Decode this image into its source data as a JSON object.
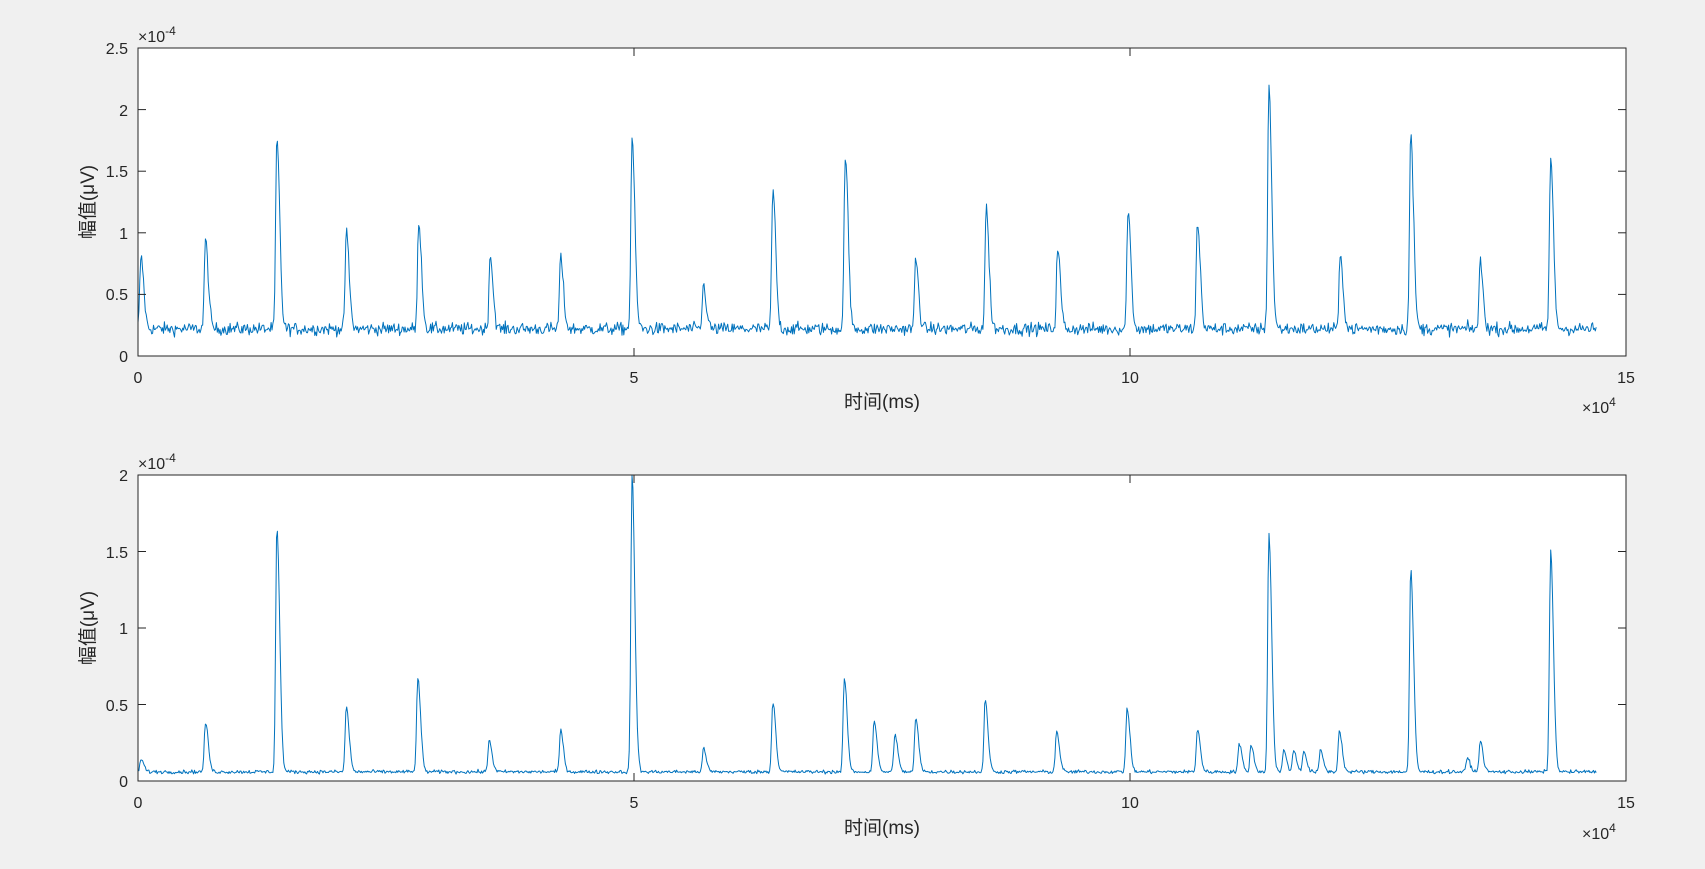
{
  "figure": {
    "background": "#f0f0f0",
    "line_color": "#0072bd",
    "axes_color": "#262626"
  },
  "chart_data": [
    {
      "type": "line",
      "xlabel": "时间(ms)",
      "ylabel": "幅值(μV)",
      "xlim": [
        0,
        15
      ],
      "ylim": [
        0,
        2.5
      ],
      "x_multiplier": "×10",
      "x_multiplier_exp": "4",
      "y_multiplier": "×10",
      "y_multiplier_exp": "-4",
      "x_ticks": [
        0,
        5,
        10,
        15
      ],
      "x_tick_labels": [
        "0",
        "5",
        "10",
        "15"
      ],
      "y_ticks": [
        0,
        0.5,
        1,
        1.5,
        2,
        2.5
      ],
      "y_tick_labels": [
        "0",
        "0.5",
        "1",
        "1.5",
        "2",
        "2.5"
      ],
      "grid": false,
      "series": [
        {
          "color": "#0072bd",
          "x_range": [
            0,
            14.7
          ],
          "baseline": 0.22,
          "noise": 0.05,
          "peaks": [
            [
              0.03,
              0.8
            ],
            [
              0.68,
              0.93
            ],
            [
              1.4,
              1.76
            ],
            [
              2.1,
              1.01
            ],
            [
              2.83,
              1.1
            ],
            [
              3.55,
              0.82
            ],
            [
              4.26,
              0.8
            ],
            [
              4.98,
              1.78
            ],
            [
              5.7,
              0.57
            ],
            [
              6.4,
              1.35
            ],
            [
              7.13,
              1.65
            ],
            [
              7.84,
              0.78
            ],
            [
              8.55,
              1.21
            ],
            [
              9.27,
              0.88
            ],
            [
              9.98,
              1.2
            ],
            [
              10.68,
              1.08
            ],
            [
              11.4,
              2.19
            ],
            [
              12.12,
              0.81
            ],
            [
              12.83,
              1.81
            ],
            [
              13.53,
              0.76
            ],
            [
              14.24,
              1.61
            ]
          ]
        }
      ]
    },
    {
      "type": "line",
      "xlabel": "时间(ms)",
      "ylabel": "幅值(μV)",
      "xlim": [
        0,
        15
      ],
      "ylim": [
        0,
        2
      ],
      "x_multiplier": "×10",
      "x_multiplier_exp": "4",
      "y_multiplier": "×10",
      "y_multiplier_exp": "-4",
      "x_ticks": [
        0,
        5,
        10,
        15
      ],
      "x_tick_labels": [
        "0",
        "5",
        "10",
        "15"
      ],
      "y_ticks": [
        0,
        0.5,
        1,
        1.5,
        2
      ],
      "y_tick_labels": [
        "0",
        "0.5",
        "1",
        "1.5",
        "2"
      ],
      "grid": false,
      "series": [
        {
          "color": "#0072bd",
          "x_range": [
            0,
            14.7
          ],
          "baseline": 0.06,
          "noise": 0.012,
          "peaks": [
            [
              0.03,
              0.14
            ],
            [
              0.68,
              0.38
            ],
            [
              1.4,
              1.66
            ],
            [
              2.1,
              0.49
            ],
            [
              2.82,
              0.68
            ],
            [
              3.54,
              0.27
            ],
            [
              4.26,
              0.33
            ],
            [
              4.98,
              2.0
            ],
            [
              5.7,
              0.21
            ],
            [
              6.4,
              0.52
            ],
            [
              7.12,
              0.67
            ],
            [
              7.42,
              0.4
            ],
            [
              7.63,
              0.31
            ],
            [
              7.84,
              0.41
            ],
            [
              8.54,
              0.53
            ],
            [
              9.26,
              0.33
            ],
            [
              9.97,
              0.48
            ],
            [
              10.68,
              0.34
            ],
            [
              11.1,
              0.24
            ],
            [
              11.22,
              0.23
            ],
            [
              11.4,
              1.61
            ],
            [
              11.55,
              0.2
            ],
            [
              11.65,
              0.2
            ],
            [
              11.75,
              0.2
            ],
            [
              11.92,
              0.2
            ],
            [
              12.11,
              0.33
            ],
            [
              12.83,
              1.39
            ],
            [
              13.4,
              0.15
            ],
            [
              13.53,
              0.26
            ],
            [
              14.24,
              1.51
            ]
          ]
        }
      ]
    }
  ]
}
